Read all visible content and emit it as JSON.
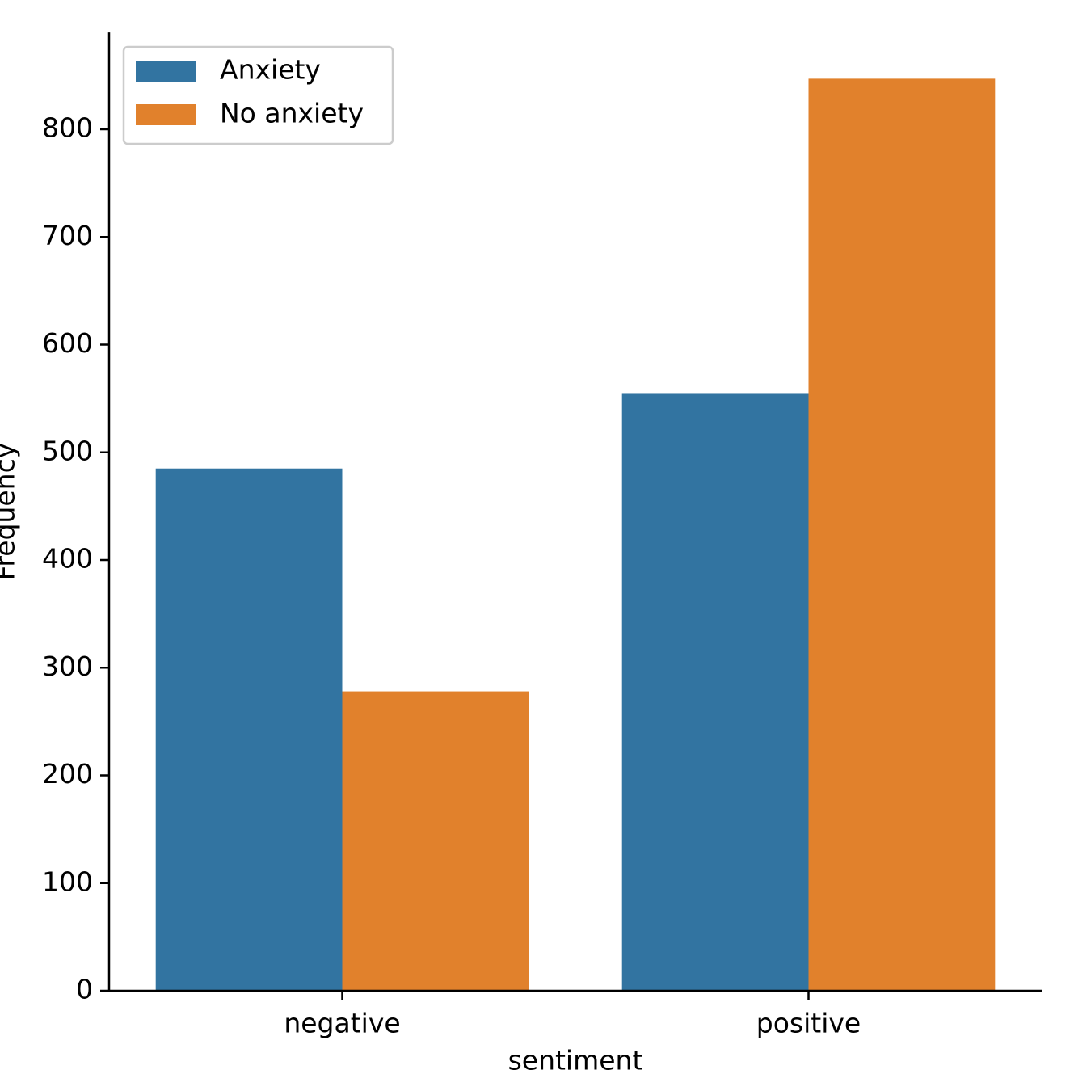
{
  "chart_data": {
    "type": "bar",
    "x_label": "sentiment",
    "y_label": "Frequency",
    "categories": [
      "negative",
      "positive"
    ],
    "series": [
      {
        "name": "Anxiety",
        "color": "#3274a1",
        "values": [
          485,
          555
        ]
      },
      {
        "name": "No anxiety",
        "color": "#e1812c",
        "values": [
          278,
          847
        ]
      }
    ],
    "ylim": [
      0,
      890
    ],
    "yticks": [
      0,
      100,
      200,
      300,
      400,
      500,
      600,
      700,
      800
    ],
    "legend": "upper left"
  }
}
